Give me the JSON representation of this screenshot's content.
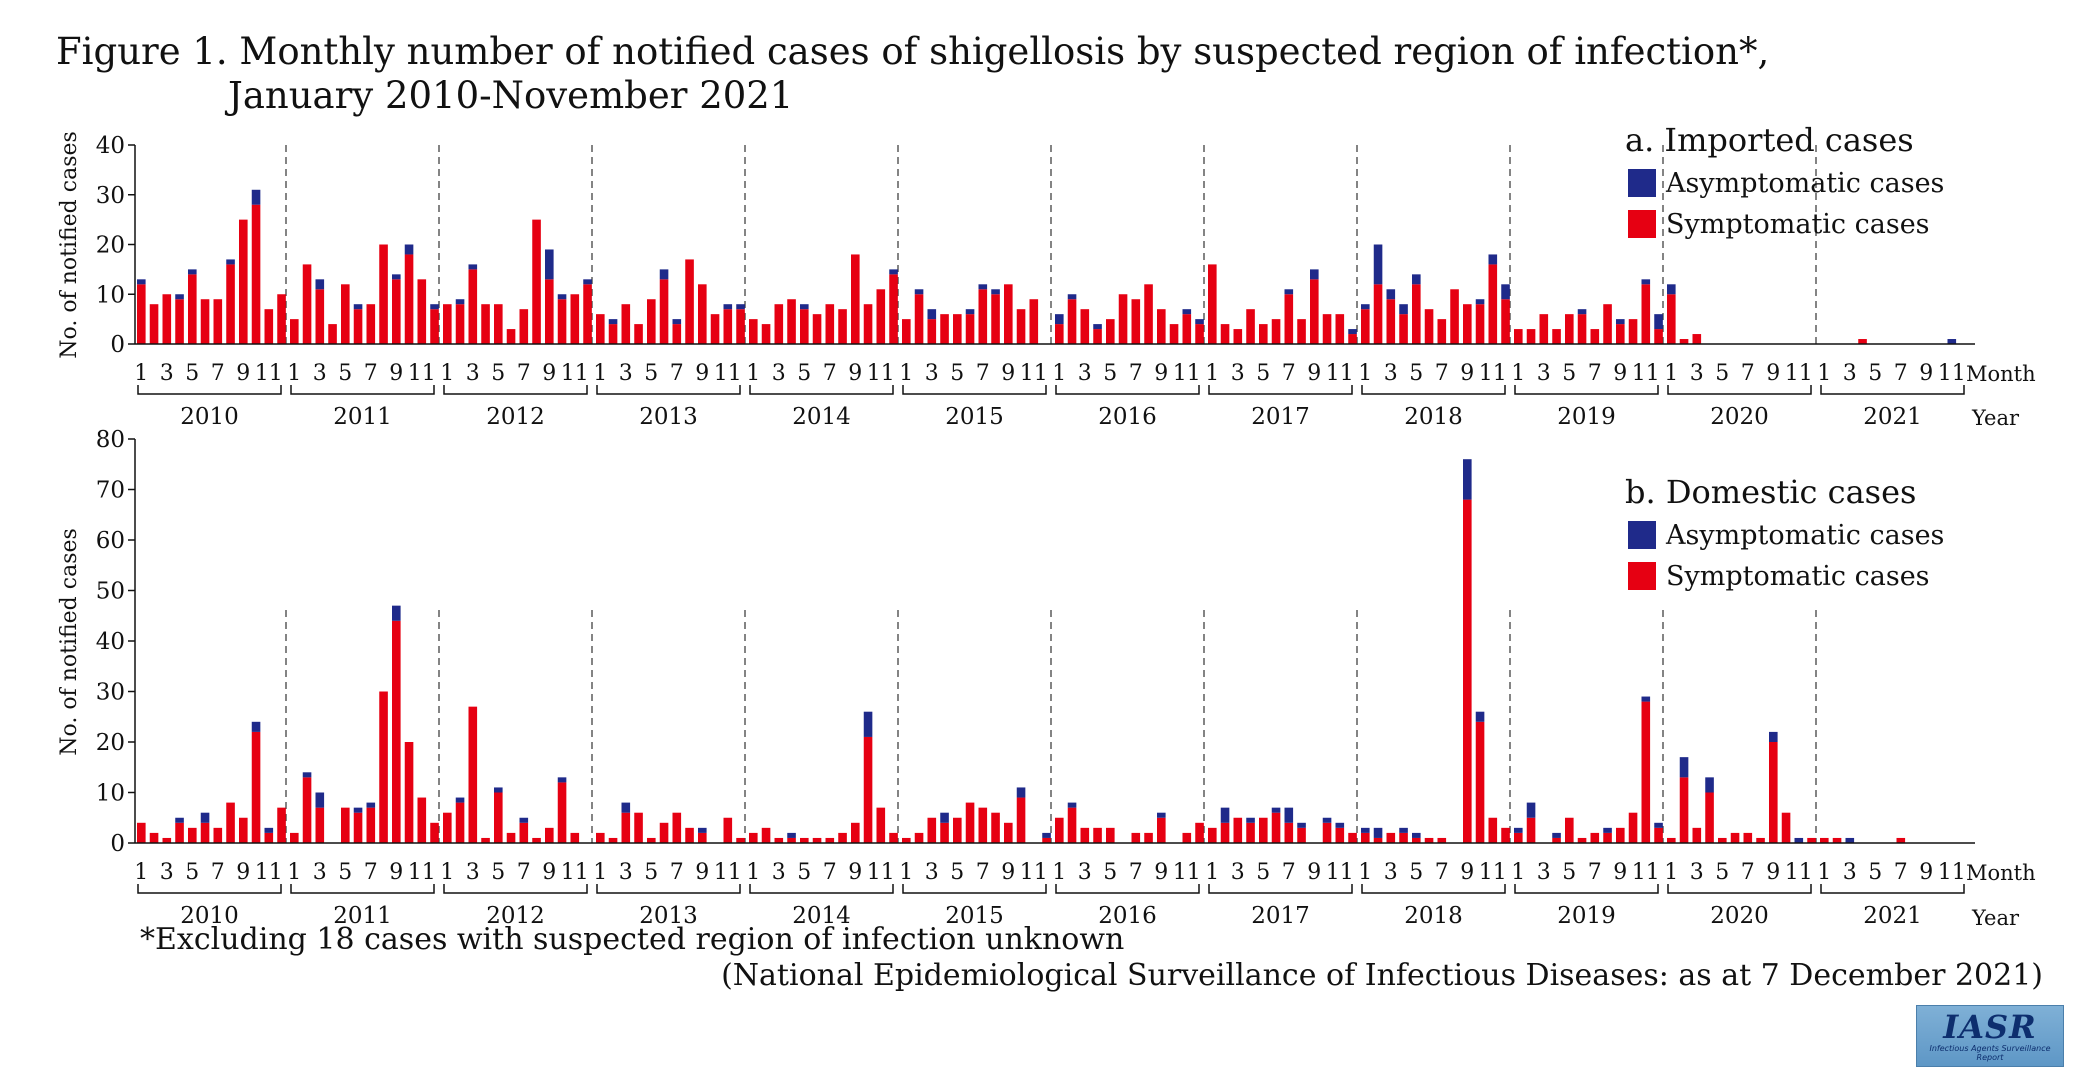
{
  "title_line1": "Figure 1. Monthly number of notified cases of shigellosis by suspected region of infection*,",
  "title_line2": "January 2010-November 2021",
  "footnote": "*Excluding 18 cases with suspected region of infection unknown",
  "source": "(National Epidemiological Surveillance of Infectious Diseases: as at 7 December 2021)",
  "logo_text": "IASR",
  "logo_subtext": "Infectious Agents Surveillance Report",
  "colors": {
    "asymptomatic": "#1f2a8a",
    "symptomatic": "#e60012"
  },
  "chart_data": [
    {
      "type": "bar",
      "stacked": true,
      "title": "a. Imported cases",
      "ylabel": "No. of notified cases",
      "month_label": "Month",
      "year_label": "Year",
      "ylim": [
        0,
        40
      ],
      "yticks": [
        0,
        10,
        20,
        30,
        40
      ],
      "years": [
        "2010",
        "2011",
        "2012",
        "2013",
        "2014",
        "2015",
        "2016",
        "2017",
        "2018",
        "2019",
        "2020",
        "2021"
      ],
      "month_ticks": [
        "1",
        "3",
        "5",
        "7",
        "9",
        "11"
      ],
      "legend": [
        "Asymptomatic cases",
        "Symptomatic cases"
      ],
      "series": [
        {
          "name": "Symptomatic cases",
          "values": [
            12,
            8,
            10,
            9,
            14,
            9,
            9,
            16,
            25,
            28,
            7,
            10,
            5,
            16,
            11,
            4,
            12,
            7,
            8,
            20,
            13,
            18,
            13,
            7,
            8,
            8,
            15,
            8,
            8,
            3,
            7,
            25,
            13,
            9,
            10,
            12,
            6,
            4,
            8,
            4,
            9,
            13,
            4,
            17,
            12,
            6,
            7,
            7,
            5,
            4,
            8,
            9,
            7,
            6,
            8,
            7,
            18,
            8,
            11,
            14,
            5,
            10,
            5,
            6,
            6,
            6,
            11,
            10,
            12,
            7,
            9,
            0,
            4,
            9,
            7,
            3,
            5,
            10,
            9,
            12,
            7,
            4,
            6,
            4,
            16,
            4,
            3,
            7,
            4,
            5,
            10,
            5,
            13,
            6,
            6,
            2,
            7,
            12,
            9,
            6,
            12,
            7,
            5,
            11,
            8,
            8,
            16,
            9,
            3,
            3,
            6,
            3,
            6,
            6,
            3,
            8,
            4,
            5,
            12,
            3,
            10,
            1,
            2,
            0,
            0,
            0,
            0,
            0,
            0,
            0,
            0,
            0,
            0,
            0,
            0,
            1,
            0,
            0,
            0,
            0,
            0,
            0,
            0
          ]
        },
        {
          "name": "Asymptomatic cases",
          "values": [
            1,
            0,
            0,
            1,
            1,
            0,
            0,
            1,
            0,
            3,
            0,
            0,
            0,
            0,
            2,
            0,
            0,
            1,
            0,
            0,
            1,
            2,
            0,
            1,
            0,
            1,
            1,
            0,
            0,
            0,
            0,
            0,
            6,
            1,
            0,
            1,
            0,
            1,
            0,
            0,
            0,
            2,
            1,
            0,
            0,
            0,
            1,
            1,
            0,
            0,
            0,
            0,
            1,
            0,
            0,
            0,
            0,
            0,
            0,
            1,
            0,
            1,
            2,
            0,
            0,
            1,
            1,
            1,
            0,
            0,
            0,
            0,
            2,
            1,
            0,
            1,
            0,
            0,
            0,
            0,
            0,
            0,
            1,
            1,
            0,
            0,
            0,
            0,
            0,
            0,
            1,
            0,
            2,
            0,
            0,
            1,
            1,
            8,
            2,
            2,
            2,
            0,
            0,
            0,
            0,
            1,
            2,
            3,
            0,
            0,
            0,
            0,
            0,
            1,
            0,
            0,
            1,
            0,
            1,
            3,
            2,
            0,
            0,
            0,
            0,
            0,
            0,
            0,
            0,
            0,
            0,
            0,
            0,
            0,
            0,
            0,
            0,
            0,
            0,
            0,
            0,
            0,
            1
          ]
        }
      ]
    },
    {
      "type": "bar",
      "stacked": true,
      "title": "b. Domestic cases",
      "ylabel": "No. of notified cases",
      "month_label": "Month",
      "year_label": "Year",
      "ylim": [
        0,
        80
      ],
      "yticks": [
        0,
        10,
        20,
        30,
        40,
        50,
        60,
        70,
        80
      ],
      "years": [
        "2010",
        "2011",
        "2012",
        "2013",
        "2014",
        "2015",
        "2016",
        "2017",
        "2018",
        "2019",
        "2020",
        "2021"
      ],
      "month_ticks": [
        "1",
        "3",
        "5",
        "7",
        "9",
        "11"
      ],
      "legend": [
        "Asymptomatic cases",
        "Symptomatic cases"
      ],
      "series": [
        {
          "name": "Symptomatic cases",
          "values": [
            4,
            2,
            1,
            4,
            3,
            4,
            3,
            8,
            5,
            22,
            2,
            7,
            2,
            13,
            7,
            0,
            7,
            6,
            7,
            30,
            44,
            20,
            9,
            4,
            6,
            8,
            27,
            1,
            10,
            2,
            4,
            1,
            3,
            12,
            2,
            0,
            2,
            1,
            6,
            6,
            1,
            4,
            6,
            3,
            2,
            0,
            5,
            1,
            2,
            3,
            1,
            1,
            1,
            1,
            1,
            2,
            4,
            21,
            7,
            2,
            1,
            2,
            5,
            4,
            5,
            8,
            7,
            6,
            4,
            9,
            0,
            1,
            5,
            7,
            3,
            3,
            3,
            0,
            2,
            2,
            5,
            0,
            2,
            4,
            3,
            4,
            5,
            4,
            5,
            6,
            4,
            3,
            0,
            4,
            3,
            2,
            2,
            1,
            2,
            2,
            1,
            1,
            1,
            0,
            68,
            24,
            5,
            3,
            2,
            5,
            0,
            1,
            5,
            1,
            2,
            2,
            3,
            6,
            28,
            3,
            1,
            13,
            3,
            10,
            1,
            2,
            2,
            1,
            20,
            6,
            0,
            1,
            1,
            1,
            0,
            0,
            0,
            0,
            1,
            0,
            0,
            0,
            0
          ]
        },
        {
          "name": "Asymptomatic cases",
          "values": [
            0,
            0,
            0,
            1,
            0,
            2,
            0,
            0,
            0,
            2,
            1,
            0,
            0,
            1,
            3,
            0,
            0,
            1,
            1,
            0,
            3,
            0,
            0,
            0,
            0,
            1,
            0,
            0,
            1,
            0,
            1,
            0,
            0,
            1,
            0,
            0,
            0,
            0,
            2,
            0,
            0,
            0,
            0,
            0,
            1,
            0,
            0,
            0,
            0,
            0,
            0,
            1,
            0,
            0,
            0,
            0,
            0,
            5,
            0,
            0,
            0,
            0,
            0,
            2,
            0,
            0,
            0,
            0,
            0,
            2,
            0,
            1,
            0,
            1,
            0,
            0,
            0,
            0,
            0,
            0,
            1,
            0,
            0,
            0,
            0,
            3,
            0,
            1,
            0,
            1,
            3,
            1,
            0,
            1,
            1,
            0,
            1,
            2,
            0,
            1,
            1,
            0,
            0,
            0,
            8,
            2,
            0,
            0,
            1,
            3,
            0,
            1,
            0,
            0,
            0,
            1,
            0,
            0,
            1,
            1,
            0,
            4,
            0,
            3,
            0,
            0,
            0,
            0,
            2,
            0,
            1,
            0,
            0,
            0,
            1,
            0,
            0,
            0,
            0,
            0,
            0,
            0,
            0
          ]
        }
      ]
    }
  ]
}
